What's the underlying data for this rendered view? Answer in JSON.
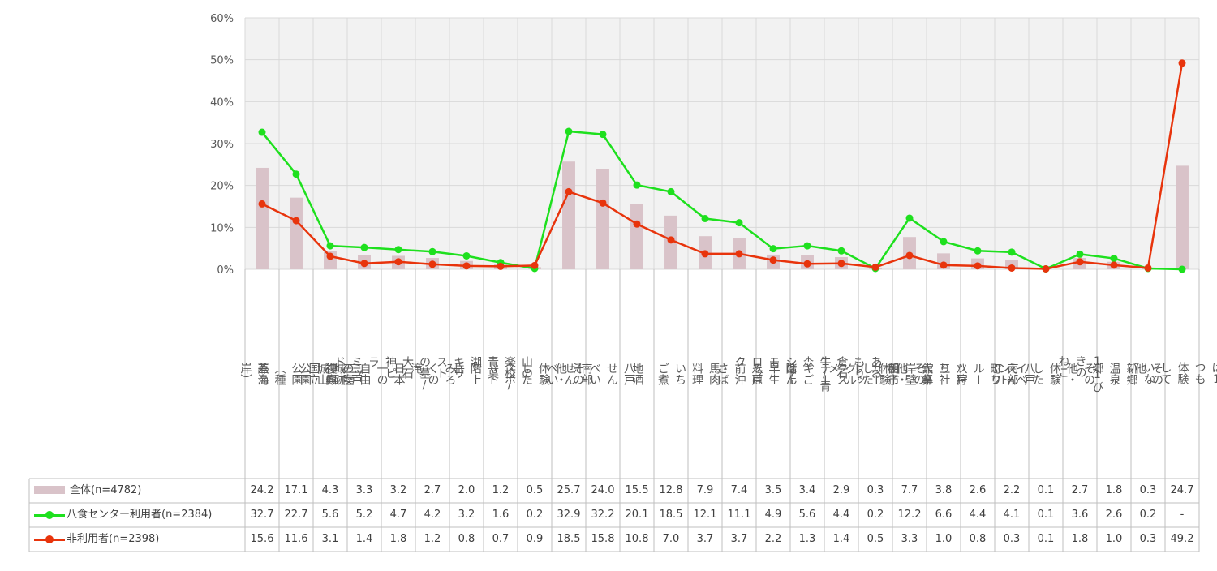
{
  "chart_data": {
    "type": "bar",
    "ylim": [
      0,
      60
    ],
    "yticks": [
      "0%",
      "10%",
      "20%",
      "30%",
      "40%",
      "50%",
      "60%"
    ],
    "grid": true,
    "categories": [
      "燕島",
      "三陸復興国立公園（種差海岸）",
      "三戸城跡城山公園",
      "日本一の自由の女神像",
      "キリストの墓/大石神ピラミッド",
      "みろくの滝",
      "階上岳",
      "山の楽校/青葉湖",
      "その他・体験したスポット",
      "南部せんべい",
      "八戸せんべい汁",
      "地酒",
      "いちご煮",
      "馬肉料理",
      "八戸前沖さば",
      "階上早生そば",
      "あおもり倉石牛/青森シャモロック",
      "田子ガーリックステーキごはん",
      "その他・体験したグルメ",
      "舘鼻岸壁朝市",
      "八戸三社大祭",
      "南部町フルーツ狩り",
      "八戸えんぶり",
      "その他・体験したイベント",
      "11ぴきのねこ",
      "新郷温泉郷",
      "その他",
      "上記は1つも体験していない"
    ],
    "category_lines": [
      "燕島",
      "三陸\n復興\n国立\n公園\n（種\n差海\n岸）",
      "三戸\n城跡\n城山\n公園",
      "日本\n一の\n自由\nの女\n神像",
      "キリ\nスト\nの墓/\n大石\n神ピ\nラ\nミッ\nド",
      "みろ\nくの\n滝",
      "階上\n岳",
      "山の\n楽校/\n青葉\n湖",
      "その\n他・\n体験\nした\nスポ\nット",
      "南部\nせん\nべい",
      "八戸\nせん\nべい\n汁",
      "地酒",
      "いち\nご煮",
      "馬肉\n料理",
      "八戸\n前沖\nさば",
      "階上\n早生\nそば",
      "あお\nもり\n倉石\n牛/青\n森\nシャ\nモ\nロッ\nク",
      "田子\nガー\nリッ\nクス\nテー\nキご\nはん",
      "その\n他・\n体験\nした\nグル\nメ",
      "舘鼻\n岸壁\n朝市",
      "八戸\n三社\n大祭",
      "南部\n町フ\nルー\nツ狩\nり",
      "八戸\nえん\nぶり",
      "その\n他・\n体験\nした\nイベ\nント",
      "11ぴ\nきの\nねこ",
      "新郷\n温泉\n郷",
      "その\n他",
      "上記\nは1\nつも\n体験\nして\nいな\nい"
    ],
    "series": [
      {
        "name": "全体(n=4782)",
        "kind": "bar",
        "color": "#d9c3c9",
        "values": [
          24.2,
          17.1,
          4.3,
          3.3,
          3.2,
          2.7,
          2.0,
          1.2,
          0.5,
          25.7,
          24.0,
          15.5,
          12.8,
          7.9,
          7.4,
          3.5,
          3.4,
          2.9,
          0.3,
          7.7,
          3.8,
          2.6,
          2.2,
          0.1,
          2.7,
          1.8,
          0.3,
          24.7
        ],
        "labels": [
          "24.2",
          "17.1",
          "4.3",
          "3.3",
          "3.2",
          "2.7",
          "2.0",
          "1.2",
          "0.5",
          "25.7",
          "24.0",
          "15.5",
          "12.8",
          "7.9",
          "7.4",
          "3.5",
          "3.4",
          "2.9",
          "0.3",
          "7.7",
          "3.8",
          "2.6",
          "2.2",
          "0.1",
          "2.7",
          "1.8",
          "0.3",
          "24.7"
        ]
      },
      {
        "name": "八食センター利用者(n=2384)",
        "kind": "line",
        "color": "#1ee01e",
        "values": [
          32.7,
          22.7,
          5.6,
          5.2,
          4.7,
          4.2,
          3.2,
          1.6,
          0.2,
          32.9,
          32.2,
          20.1,
          18.5,
          12.1,
          11.1,
          4.9,
          5.6,
          4.4,
          0.2,
          12.2,
          6.6,
          4.4,
          4.1,
          0.1,
          3.6,
          2.6,
          0.2,
          0
        ],
        "labels": [
          "32.7",
          "22.7",
          "5.6",
          "5.2",
          "4.7",
          "4.2",
          "3.2",
          "1.6",
          "0.2",
          "32.9",
          "32.2",
          "20.1",
          "18.5",
          "12.1",
          "11.1",
          "4.9",
          "5.6",
          "4.4",
          "0.2",
          "12.2",
          "6.6",
          "4.4",
          "4.1",
          "0.1",
          "3.6",
          "2.6",
          "0.2",
          "-"
        ]
      },
      {
        "name": "非利用者(n=2398)",
        "kind": "line",
        "color": "#e8340c",
        "values": [
          15.6,
          11.6,
          3.1,
          1.4,
          1.8,
          1.2,
          0.8,
          0.7,
          0.9,
          18.5,
          15.8,
          10.8,
          7.0,
          3.7,
          3.7,
          2.2,
          1.3,
          1.4,
          0.5,
          3.3,
          1.0,
          0.8,
          0.3,
          0.1,
          1.8,
          1.0,
          0.3,
          49.2
        ],
        "labels": [
          "15.6",
          "11.6",
          "3.1",
          "1.4",
          "1.8",
          "1.2",
          "0.8",
          "0.7",
          "0.9",
          "18.5",
          "15.8",
          "10.8",
          "7.0",
          "3.7",
          "3.7",
          "2.2",
          "1.3",
          "1.4",
          "0.5",
          "3.3",
          "1.0",
          "0.8",
          "0.3",
          "0.1",
          "1.8",
          "1.0",
          "0.3",
          "49.2"
        ]
      }
    ]
  }
}
